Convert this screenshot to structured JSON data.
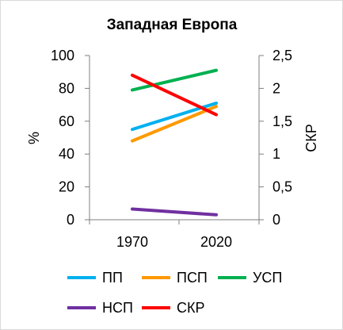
{
  "chart_data": {
    "type": "line",
    "title": "Западная Европа",
    "categories": [
      "1970",
      "2020"
    ],
    "y_left": {
      "label": "%",
      "ylim": [
        0,
        100
      ],
      "ticks": [
        "0",
        "20",
        "40",
        "60",
        "80",
        "100"
      ]
    },
    "y_right": {
      "label": "СКР",
      "ylim": [
        0,
        2.5
      ],
      "ticks": [
        "0",
        "0,5",
        "1",
        "1,5",
        "2",
        "2,5"
      ]
    },
    "grid": false,
    "legend_position": "bottom",
    "series": [
      {
        "name": "ПП",
        "axis": "left",
        "values": [
          55,
          71
        ],
        "color": "#00b0f0"
      },
      {
        "name": "ПСП",
        "axis": "left",
        "values": [
          48,
          69
        ],
        "color": "#ff9900"
      },
      {
        "name": "УСП",
        "axis": "left",
        "values": [
          79,
          91
        ],
        "color": "#00b050"
      },
      {
        "name": "НСП",
        "axis": "left",
        "values": [
          6.5,
          3
        ],
        "color": "#7030a0"
      },
      {
        "name": "СКР",
        "axis": "right",
        "values": [
          2.2,
          1.6
        ],
        "color": "#ff0000"
      }
    ]
  }
}
